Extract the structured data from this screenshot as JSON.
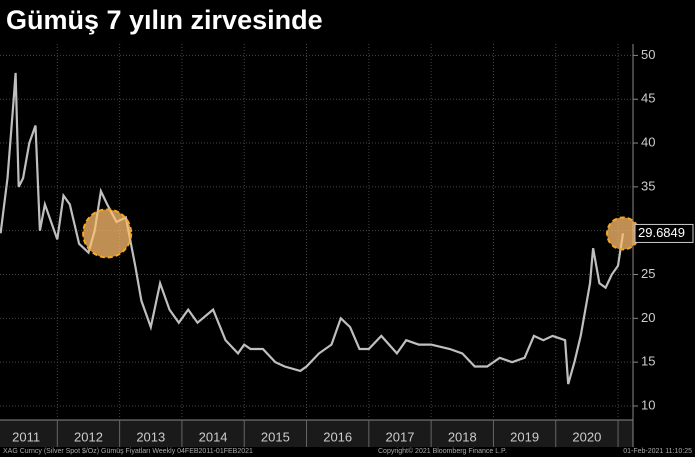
{
  "chart_data": {
    "type": "line",
    "title": "Gümüş 7 yılın zirvesinde",
    "x": [
      2011.09,
      2011.2,
      2011.3,
      2011.33,
      2011.38,
      2011.45,
      2011.55,
      2011.65,
      2011.72,
      2011.8,
      2011.9,
      2012.0,
      2012.1,
      2012.2,
      2012.35,
      2012.5,
      2012.6,
      2012.7,
      2012.8,
      2012.95,
      2013.1,
      2013.25,
      2013.35,
      2013.5,
      2013.65,
      2013.8,
      2013.95,
      2014.1,
      2014.25,
      2014.5,
      2014.7,
      2014.9,
      2015.0,
      2015.1,
      2015.3,
      2015.5,
      2015.65,
      2015.9,
      2016.0,
      2016.2,
      2016.4,
      2016.55,
      2016.7,
      2016.85,
      2017.0,
      2017.2,
      2017.45,
      2017.6,
      2017.8,
      2018.0,
      2018.3,
      2018.5,
      2018.7,
      2018.9,
      2019.1,
      2019.3,
      2019.5,
      2019.65,
      2019.8,
      2019.95,
      2020.15,
      2020.2,
      2020.3,
      2020.4,
      2020.55,
      2020.6,
      2020.7,
      2020.8,
      2020.9,
      2021.0,
      2021.08
    ],
    "values": [
      29.7,
      36,
      45,
      48,
      35,
      36,
      40,
      42,
      30,
      33,
      31,
      29,
      34,
      33,
      28.5,
      27.5,
      30,
      34.5,
      33,
      31,
      31.5,
      26,
      22,
      19,
      24,
      21,
      19.5,
      21,
      19.5,
      21,
      17.5,
      16,
      17,
      16.5,
      16.5,
      15,
      14.5,
      14,
      14.5,
      16,
      17,
      20,
      19,
      16.5,
      16.5,
      18,
      16,
      17.5,
      17,
      17,
      16.5,
      16,
      14.5,
      14.5,
      15.5,
      15,
      15.5,
      18,
      17.5,
      18,
      17.5,
      12.5,
      15,
      18,
      24,
      28,
      24,
      23.5,
      25,
      26,
      29.6849
    ],
    "color": "#bfbfbf",
    "last_label": 29.6849,
    "xlim": [
      2011.08,
      2021.24
    ],
    "xticks": [
      {
        "value": 2011.5,
        "label": "2011"
      },
      {
        "value": 2012.5,
        "label": "2012"
      },
      {
        "value": 2013.5,
        "label": "2013"
      },
      {
        "value": 2014.5,
        "label": "2014"
      },
      {
        "value": 2015.5,
        "label": "2015"
      },
      {
        "value": 2016.5,
        "label": "2016"
      },
      {
        "value": 2017.5,
        "label": "2017"
      },
      {
        "value": 2018.5,
        "label": "2018"
      },
      {
        "value": 2019.5,
        "label": "2019"
      },
      {
        "value": 2020.5,
        "label": "2020"
      }
    ],
    "ylim": [
      8.4,
      51.3
    ],
    "yticks": [
      10,
      15,
      20,
      25,
      30,
      35,
      40,
      45,
      50
    ],
    "grid": true,
    "source": "XAG Curncy (Silver Spot  $/Oz) Gümüş Fiyatları  Weekly 04FEB2011-01FEB2021",
    "copyright": "Copyright© 2021 Bloomberg Finance L.P.",
    "timestamp": "01-Feb-2021 11:10:25"
  }
}
